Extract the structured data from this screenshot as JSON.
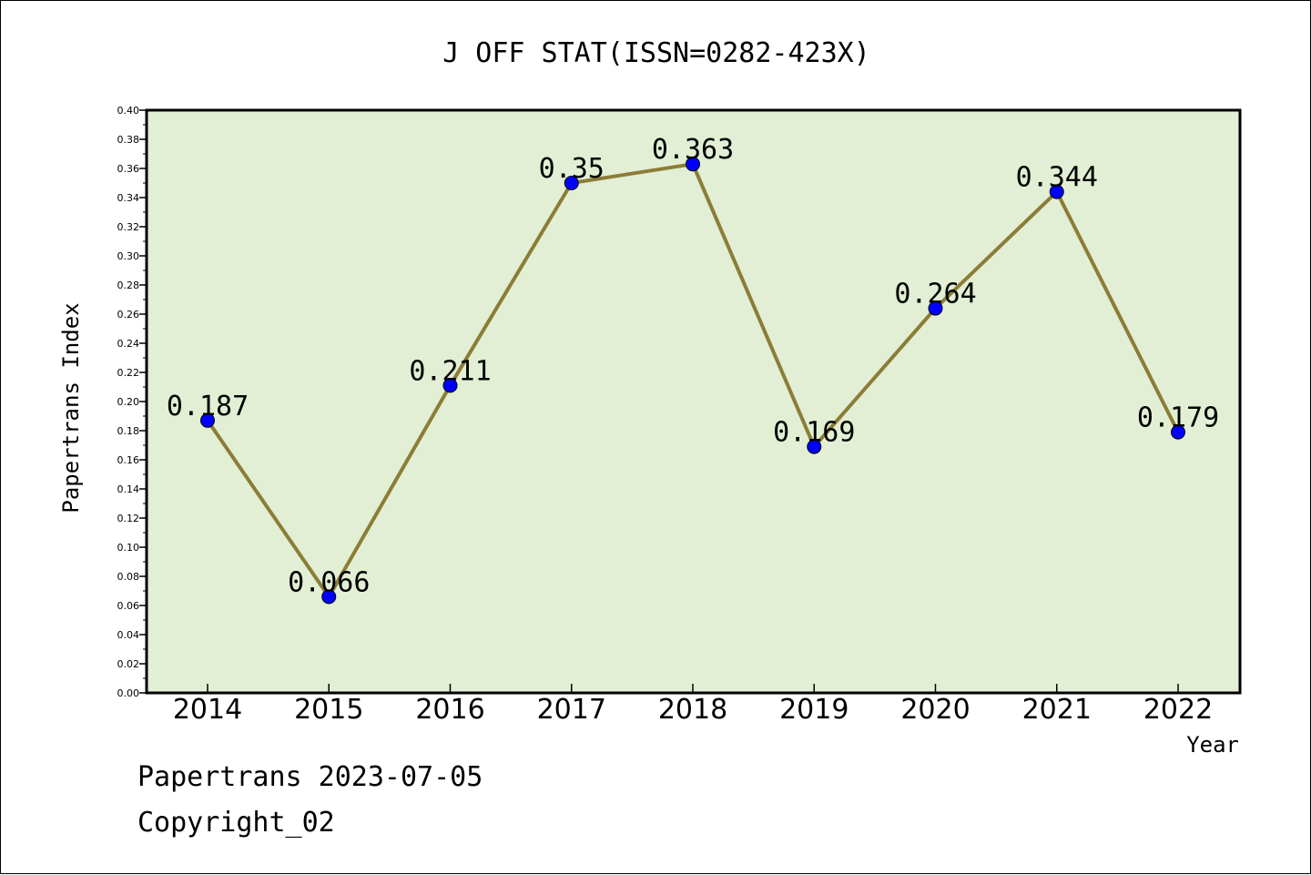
{
  "chart_data": {
    "type": "line",
    "title": "J OFF STAT(ISSN=0282-423X)",
    "xlabel": "Year",
    "ylabel": "Papertrans Index",
    "categories": [
      "2014",
      "2015",
      "2016",
      "2017",
      "2018",
      "2019",
      "2020",
      "2021",
      "2022"
    ],
    "series": [
      {
        "values": [
          0.187,
          0.066,
          0.211,
          0.35,
          0.363,
          0.169,
          0.264,
          0.344,
          0.179
        ]
      }
    ],
    "data_labels": [
      "0.187",
      "0.066",
      "0.211",
      "0.35",
      "0.363",
      "0.169",
      "0.264",
      "0.344",
      "0.179"
    ],
    "ylim": [
      0,
      0.4
    ],
    "yticks": [
      "0.00",
      "0.02",
      "0.04",
      "0.06",
      "0.08",
      "0.10",
      "0.12",
      "0.14",
      "0.16",
      "0.18",
      "0.20",
      "0.22",
      "0.24",
      "0.26",
      "0.28",
      "0.30",
      "0.32",
      "0.34",
      "0.36",
      "0.38",
      "0.40"
    ],
    "grid": false,
    "colors": {
      "plot_background": "#e2efd4",
      "line": "#8b7d37",
      "marker": "#0000ff"
    }
  },
  "footer": {
    "date_line": "Papertrans 2023-07-05",
    "copyright_line": "Copyright_02"
  }
}
